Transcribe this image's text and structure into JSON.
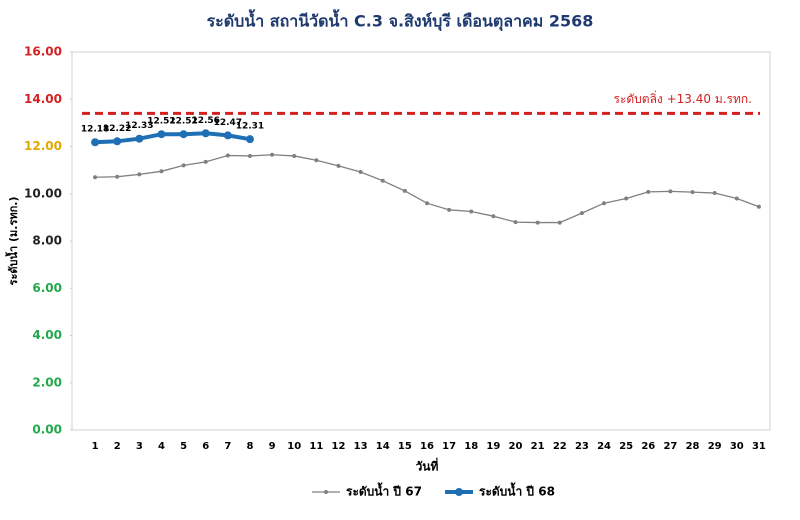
{
  "chart_data": {
    "type": "line",
    "title": "ระดับน้ำ สถานีวัดน้ำ C.3 จ.สิงห์บุรี เดือนตุลาคม 2568",
    "x_label": "วันที่",
    "y_label": "ระดับน้ำ (ม.รทก.)",
    "categories": [
      "1",
      "2",
      "3",
      "4",
      "5",
      "6",
      "7",
      "8",
      "9",
      "10",
      "11",
      "12",
      "13",
      "14",
      "15",
      "16",
      "17",
      "18",
      "19",
      "20",
      "21",
      "22",
      "23",
      "24",
      "25",
      "26",
      "27",
      "28",
      "29",
      "30",
      "31"
    ],
    "series": [
      {
        "name": "ระดับน้ำ ปี 67",
        "color": "#808080",
        "values": [
          10.7,
          10.72,
          10.82,
          10.95,
          11.2,
          11.35,
          11.62,
          11.6,
          11.65,
          11.6,
          11.42,
          11.18,
          10.92,
          10.55,
          10.12,
          9.6,
          9.32,
          9.25,
          9.05,
          8.8,
          8.78,
          8.78,
          9.18,
          9.6,
          9.8,
          10.08,
          10.1,
          10.07,
          10.03,
          9.8,
          9.45
        ]
      },
      {
        "name": "ระดับน้ำ ปี 68",
        "color": "#1f6fb5",
        "values": [
          12.18,
          12.22,
          12.33,
          12.52,
          12.52,
          12.56,
          12.47,
          12.31,
          null,
          null,
          null,
          null,
          null,
          null,
          null,
          null,
          null,
          null,
          null,
          null,
          null,
          null,
          null,
          null,
          null,
          null,
          null,
          null,
          null,
          null,
          null
        ],
        "data_labels": true
      }
    ],
    "reference_line": {
      "value": 13.4,
      "label": "ระดับตลิ่ง +13.40 ม.รทก.",
      "color": "#d42020"
    },
    "ylim": [
      0,
      16
    ],
    "yticks": [
      {
        "value": 0,
        "label": "0.00",
        "color": "#22a84a"
      },
      {
        "value": 2,
        "label": "2.00",
        "color": "#22a84a"
      },
      {
        "value": 4,
        "label": "4.00",
        "color": "#22a84a"
      },
      {
        "value": 6,
        "label": "6.00",
        "color": "#22a84a"
      },
      {
        "value": 8,
        "label": "8.00",
        "color": "#222222"
      },
      {
        "value": 10,
        "label": "10.00",
        "color": "#222222"
      },
      {
        "value": 12,
        "label": "12.00",
        "color": "#e0a800"
      },
      {
        "value": 14,
        "label": "14.00",
        "color": "#d42020"
      },
      {
        "value": 16,
        "label": "16.00",
        "color": "#d42020"
      }
    ],
    "grid": false,
    "legend": "bottom"
  }
}
